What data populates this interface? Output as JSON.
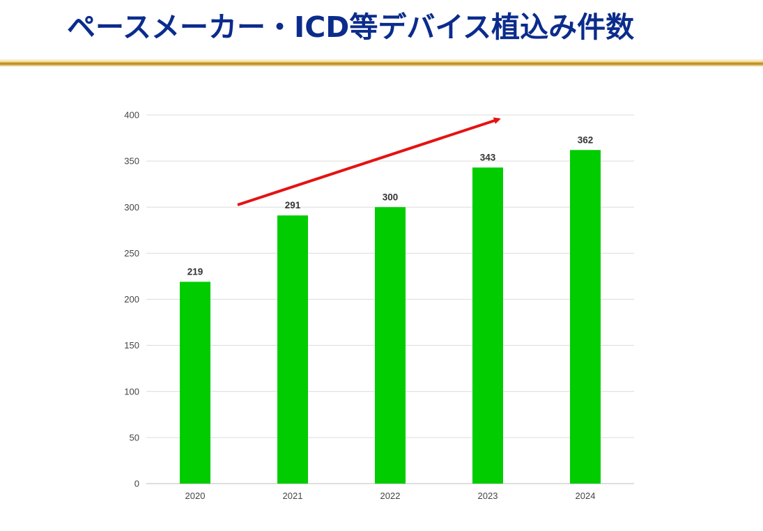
{
  "title": "ペースメーカー・ICD等デバイス植込み件数",
  "chart_data": {
    "type": "bar",
    "categories": [
      "2020",
      "2021",
      "2022",
      "2023",
      "2024"
    ],
    "values": [
      219,
      291,
      300,
      343,
      362
    ],
    "ylim": [
      0,
      400
    ],
    "yticks": [
      0,
      50,
      100,
      150,
      200,
      250,
      300,
      350,
      400
    ],
    "grid": true,
    "bar_color": "#00cc00",
    "trend_arrow_color": "#e51212",
    "title": "",
    "xlabel": "",
    "ylabel": ""
  }
}
